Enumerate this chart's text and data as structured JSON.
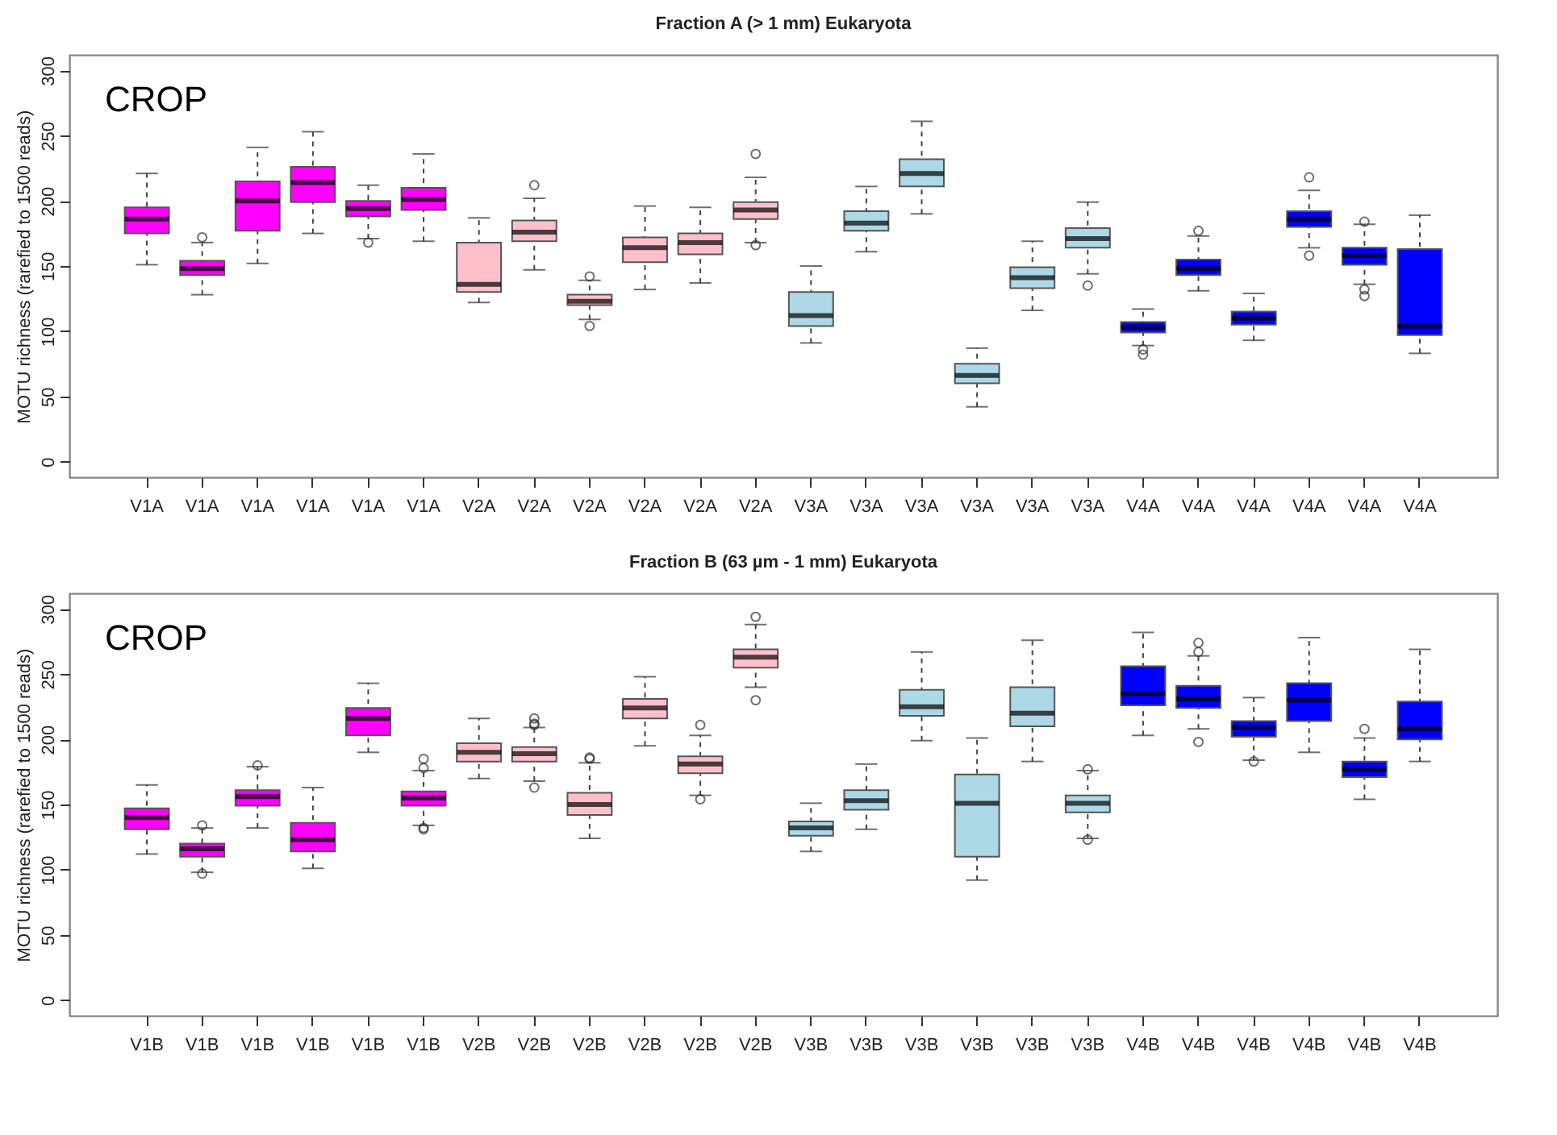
{
  "chart_data": [
    {
      "type": "box",
      "title": "Fraction A (> 1 mm) Eukaryota",
      "ylabel": "MOTU richness (rarefied to 1500 reads)",
      "categories": [
        "V1A",
        "V1A",
        "V1A",
        "V1A",
        "V1A",
        "V1A",
        "V2A",
        "V2A",
        "V2A",
        "V2A",
        "V2A",
        "V2A",
        "V3A",
        "V3A",
        "V3A",
        "V3A",
        "V3A",
        "V3A",
        "V4A",
        "V4A",
        "V4A",
        "V4A",
        "V4A",
        "V4A"
      ],
      "colors": [
        "#ff00ff",
        "#ff00ff",
        "#ff00ff",
        "#ff00ff",
        "#ff00ff",
        "#ff00ff",
        "#ffc0cb",
        "#ffc0cb",
        "#ffc0cb",
        "#ffc0cb",
        "#ffc0cb",
        "#ffc0cb",
        "#add8e6",
        "#add8e6",
        "#add8e6",
        "#add8e6",
        "#add8e6",
        "#add8e6",
        "#0000ff",
        "#0000ff",
        "#0000ff",
        "#0000ff",
        "#0000ff",
        "#0000ff"
      ],
      "boxes": [
        {
          "low": 151,
          "q1": 175,
          "median": 186,
          "q3": 195,
          "high": 221
        },
        {
          "low": 128,
          "q1": 143,
          "median": 148,
          "q3": 154,
          "high": 168,
          "outliers": [
            172
          ]
        },
        {
          "low": 152,
          "q1": 177,
          "median": 200,
          "q3": 215,
          "high": 241
        },
        {
          "low": 175,
          "q1": 199,
          "median": 214,
          "q3": 226,
          "high": 253
        },
        {
          "low": 171,
          "q1": 188,
          "median": 194,
          "q3": 200,
          "high": 212,
          "outliers": [
            168
          ]
        },
        {
          "low": 169,
          "q1": 193,
          "median": 201,
          "q3": 210,
          "high": 236
        },
        {
          "low": 122,
          "q1": 130,
          "median": 136,
          "q3": 168,
          "high": 187
        },
        {
          "low": 147,
          "q1": 169,
          "median": 176,
          "q3": 185,
          "high": 202,
          "outliers": [
            212
          ]
        },
        {
          "low": 109,
          "q1": 120,
          "median": 123,
          "q3": 128,
          "high": 139,
          "outliers": [
            142,
            104
          ]
        },
        {
          "low": 132,
          "q1": 153,
          "median": 164,
          "q3": 172,
          "high": 196
        },
        {
          "low": 137,
          "q1": 159,
          "median": 168,
          "q3": 175,
          "high": 195
        },
        {
          "low": 168,
          "q1": 186,
          "median": 193,
          "q3": 199,
          "high": 218,
          "outliers": [
            236,
            166
          ]
        },
        {
          "low": 91,
          "q1": 104,
          "median": 112,
          "q3": 130,
          "high": 150
        },
        {
          "low": 161,
          "q1": 177,
          "median": 183,
          "q3": 192,
          "high": 211
        },
        {
          "low": 190,
          "q1": 211,
          "median": 221,
          "q3": 232,
          "high": 261
        },
        {
          "low": 42,
          "q1": 60,
          "median": 66,
          "q3": 75,
          "high": 87
        },
        {
          "low": 116,
          "q1": 133,
          "median": 141,
          "q3": 149,
          "high": 169
        },
        {
          "low": 144,
          "q1": 164,
          "median": 171,
          "q3": 179,
          "high": 199,
          "outliers": [
            135
          ]
        },
        {
          "low": 89,
          "q1": 99,
          "median": 103,
          "q3": 107,
          "high": 117,
          "outliers": [
            86,
            82
          ]
        },
        {
          "low": 131,
          "q1": 143,
          "median": 148,
          "q3": 155,
          "high": 173,
          "outliers": [
            177
          ]
        },
        {
          "low": 93,
          "q1": 105,
          "median": 110,
          "q3": 115,
          "high": 129
        },
        {
          "low": 164,
          "q1": 180,
          "median": 186,
          "q3": 192,
          "high": 208,
          "outliers": [
            218,
            158
          ]
        },
        {
          "low": 136,
          "q1": 151,
          "median": 158,
          "q3": 164,
          "high": 182,
          "outliers": [
            184,
            132,
            127
          ]
        },
        {
          "low": 83,
          "q1": 97,
          "median": 104,
          "q3": 163,
          "high": 189
        }
      ],
      "ylim": [
        -12,
        312
      ],
      "yticks": [
        0,
        50,
        100,
        150,
        200,
        250,
        300
      ],
      "annotations": [
        "CROP"
      ]
    },
    {
      "type": "box",
      "title": "Fraction B (63 µm - 1 mm) Eukaryota",
      "ylabel": "MOTU richness (rarefied to 1500 reads)",
      "categories": [
        "V1B",
        "V1B",
        "V1B",
        "V1B",
        "V1B",
        "V1B",
        "V2B",
        "V2B",
        "V2B",
        "V2B",
        "V2B",
        "V2B",
        "V3B",
        "V3B",
        "V3B",
        "V3B",
        "V3B",
        "V3B",
        "V4B",
        "V4B",
        "V4B",
        "V4B",
        "V4B",
        "V4B"
      ],
      "colors": [
        "#ff00ff",
        "#ff00ff",
        "#ff00ff",
        "#ff00ff",
        "#ff00ff",
        "#ff00ff",
        "#ffc0cb",
        "#ffc0cb",
        "#ffc0cb",
        "#ffc0cb",
        "#ffc0cb",
        "#ffc0cb",
        "#add8e6",
        "#add8e6",
        "#add8e6",
        "#add8e6",
        "#add8e6",
        "#add8e6",
        "#0000ff",
        "#0000ff",
        "#0000ff",
        "#0000ff",
        "#0000ff",
        "#0000ff"
      ],
      "boxes": [
        {
          "low": 112,
          "q1": 131,
          "median": 140,
          "q3": 147,
          "high": 165
        },
        {
          "low": 98,
          "q1": 110,
          "median": 116,
          "q3": 120,
          "high": 132,
          "outliers": [
            134,
            97
          ]
        },
        {
          "low": 132,
          "q1": 149,
          "median": 156,
          "q3": 161,
          "high": 179,
          "outliers": [
            180
          ]
        },
        {
          "low": 101,
          "q1": 114,
          "median": 123,
          "q3": 136,
          "high": 163
        },
        {
          "low": 190,
          "q1": 203,
          "median": 216,
          "q3": 224,
          "high": 243
        },
        {
          "low": 134,
          "q1": 149,
          "median": 155,
          "q3": 160,
          "high": 176,
          "outliers": [
            185,
            178,
            132,
            131
          ]
        },
        {
          "low": 170,
          "q1": 183,
          "median": 190,
          "q3": 197,
          "high": 216
        },
        {
          "low": 168,
          "q1": 183,
          "median": 189,
          "q3": 194,
          "high": 209,
          "outliers": [
            216,
            212,
            211,
            163
          ]
        },
        {
          "low": 124,
          "q1": 142,
          "median": 150,
          "q3": 159,
          "high": 182,
          "outliers": [
            186,
            185
          ]
        },
        {
          "low": 195,
          "q1": 216,
          "median": 224,
          "q3": 231,
          "high": 248
        },
        {
          "low": 157,
          "q1": 174,
          "median": 181,
          "q3": 187,
          "high": 203,
          "outliers": [
            211,
            154
          ]
        },
        {
          "low": 240,
          "q1": 255,
          "median": 263,
          "q3": 269,
          "high": 288,
          "outliers": [
            294,
            230
          ]
        },
        {
          "low": 114,
          "q1": 126,
          "median": 132,
          "q3": 137,
          "high": 151
        },
        {
          "low": 131,
          "q1": 146,
          "median": 153,
          "q3": 161,
          "high": 181
        },
        {
          "low": 199,
          "q1": 218,
          "median": 225,
          "q3": 238,
          "high": 267
        },
        {
          "low": 92,
          "q1": 110,
          "median": 151,
          "q3": 173,
          "high": 201
        },
        {
          "low": 183,
          "q1": 210,
          "median": 220,
          "q3": 240,
          "high": 276
        },
        {
          "low": 124,
          "q1": 144,
          "median": 151,
          "q3": 157,
          "high": 176,
          "outliers": [
            177,
            123
          ]
        },
        {
          "low": 203,
          "q1": 226,
          "median": 235,
          "q3": 256,
          "high": 282
        },
        {
          "low": 208,
          "q1": 224,
          "median": 231,
          "q3": 241,
          "high": 264,
          "outliers": [
            274,
            267,
            198
          ]
        },
        {
          "low": 184,
          "q1": 202,
          "median": 209,
          "q3": 214,
          "high": 232,
          "outliers": [
            183
          ]
        },
        {
          "low": 190,
          "q1": 214,
          "median": 230,
          "q3": 243,
          "high": 278
        },
        {
          "low": 154,
          "q1": 171,
          "median": 177,
          "q3": 183,
          "high": 201,
          "outliers": [
            208
          ]
        },
        {
          "low": 183,
          "q1": 200,
          "median": 208,
          "q3": 229,
          "high": 269
        }
      ],
      "ylim": [
        -12,
        312
      ],
      "yticks": [
        0,
        50,
        100,
        150,
        200,
        250,
        300
      ],
      "annotations": [
        "CROP"
      ]
    }
  ]
}
